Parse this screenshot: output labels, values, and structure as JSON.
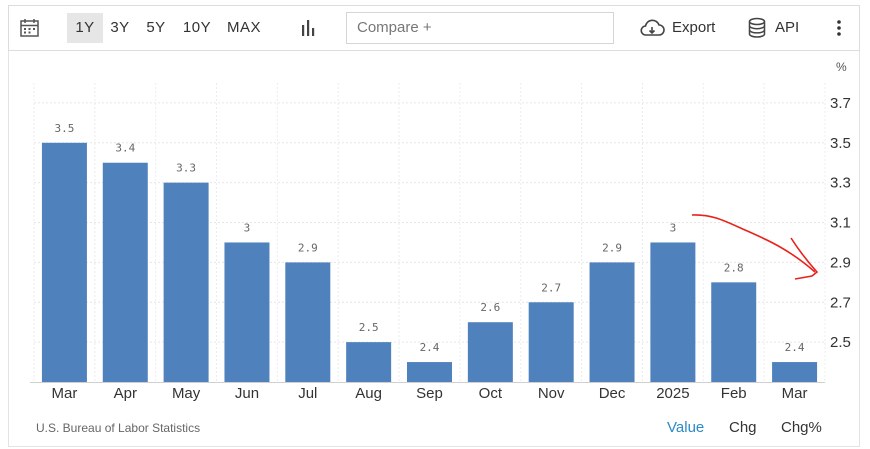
{
  "toolbar": {
    "ranges": [
      "1Y",
      "3Y",
      "5Y",
      "10Y",
      "MAX"
    ],
    "active_range": "1Y",
    "compare_placeholder": "Compare +",
    "export_label": "Export",
    "api_label": "API"
  },
  "footer": {
    "source": "U.S. Bureau of Labor Statistics",
    "modes": [
      "Value",
      "Chg",
      "Chg%"
    ],
    "active_mode": "Value"
  },
  "colors": {
    "bar": "#4f81bd",
    "annotation_arrow": "#e8221c",
    "active_mode": "#2c8ac6"
  },
  "chart_data": {
    "type": "bar",
    "categories": [
      "Mar",
      "Apr",
      "May",
      "Jun",
      "Jul",
      "Aug",
      "Sep",
      "Oct",
      "Nov",
      "Dec",
      "2025",
      "Feb",
      "Mar"
    ],
    "values": [
      3.5,
      3.4,
      3.3,
      3,
      2.9,
      2.5,
      2.4,
      2.6,
      2.7,
      2.9,
      3,
      2.8,
      2.4
    ],
    "value_labels": [
      "3.5",
      "3.4",
      "3.3",
      "3",
      "2.9",
      "2.5",
      "2.4",
      "2.6",
      "2.7",
      "2.9",
      "3",
      "2.8",
      "2.4"
    ],
    "ylabel": "%",
    "yticks": [
      "3.7",
      "3.5",
      "3.3",
      "3.1",
      "2.9",
      "2.7",
      "2.5"
    ],
    "ylim": [
      2.3,
      3.8
    ],
    "y_axis_side": "right",
    "grid": true,
    "annotation": "hand-drawn red arrow pointing to the 2.8 level on the y-axis"
  }
}
